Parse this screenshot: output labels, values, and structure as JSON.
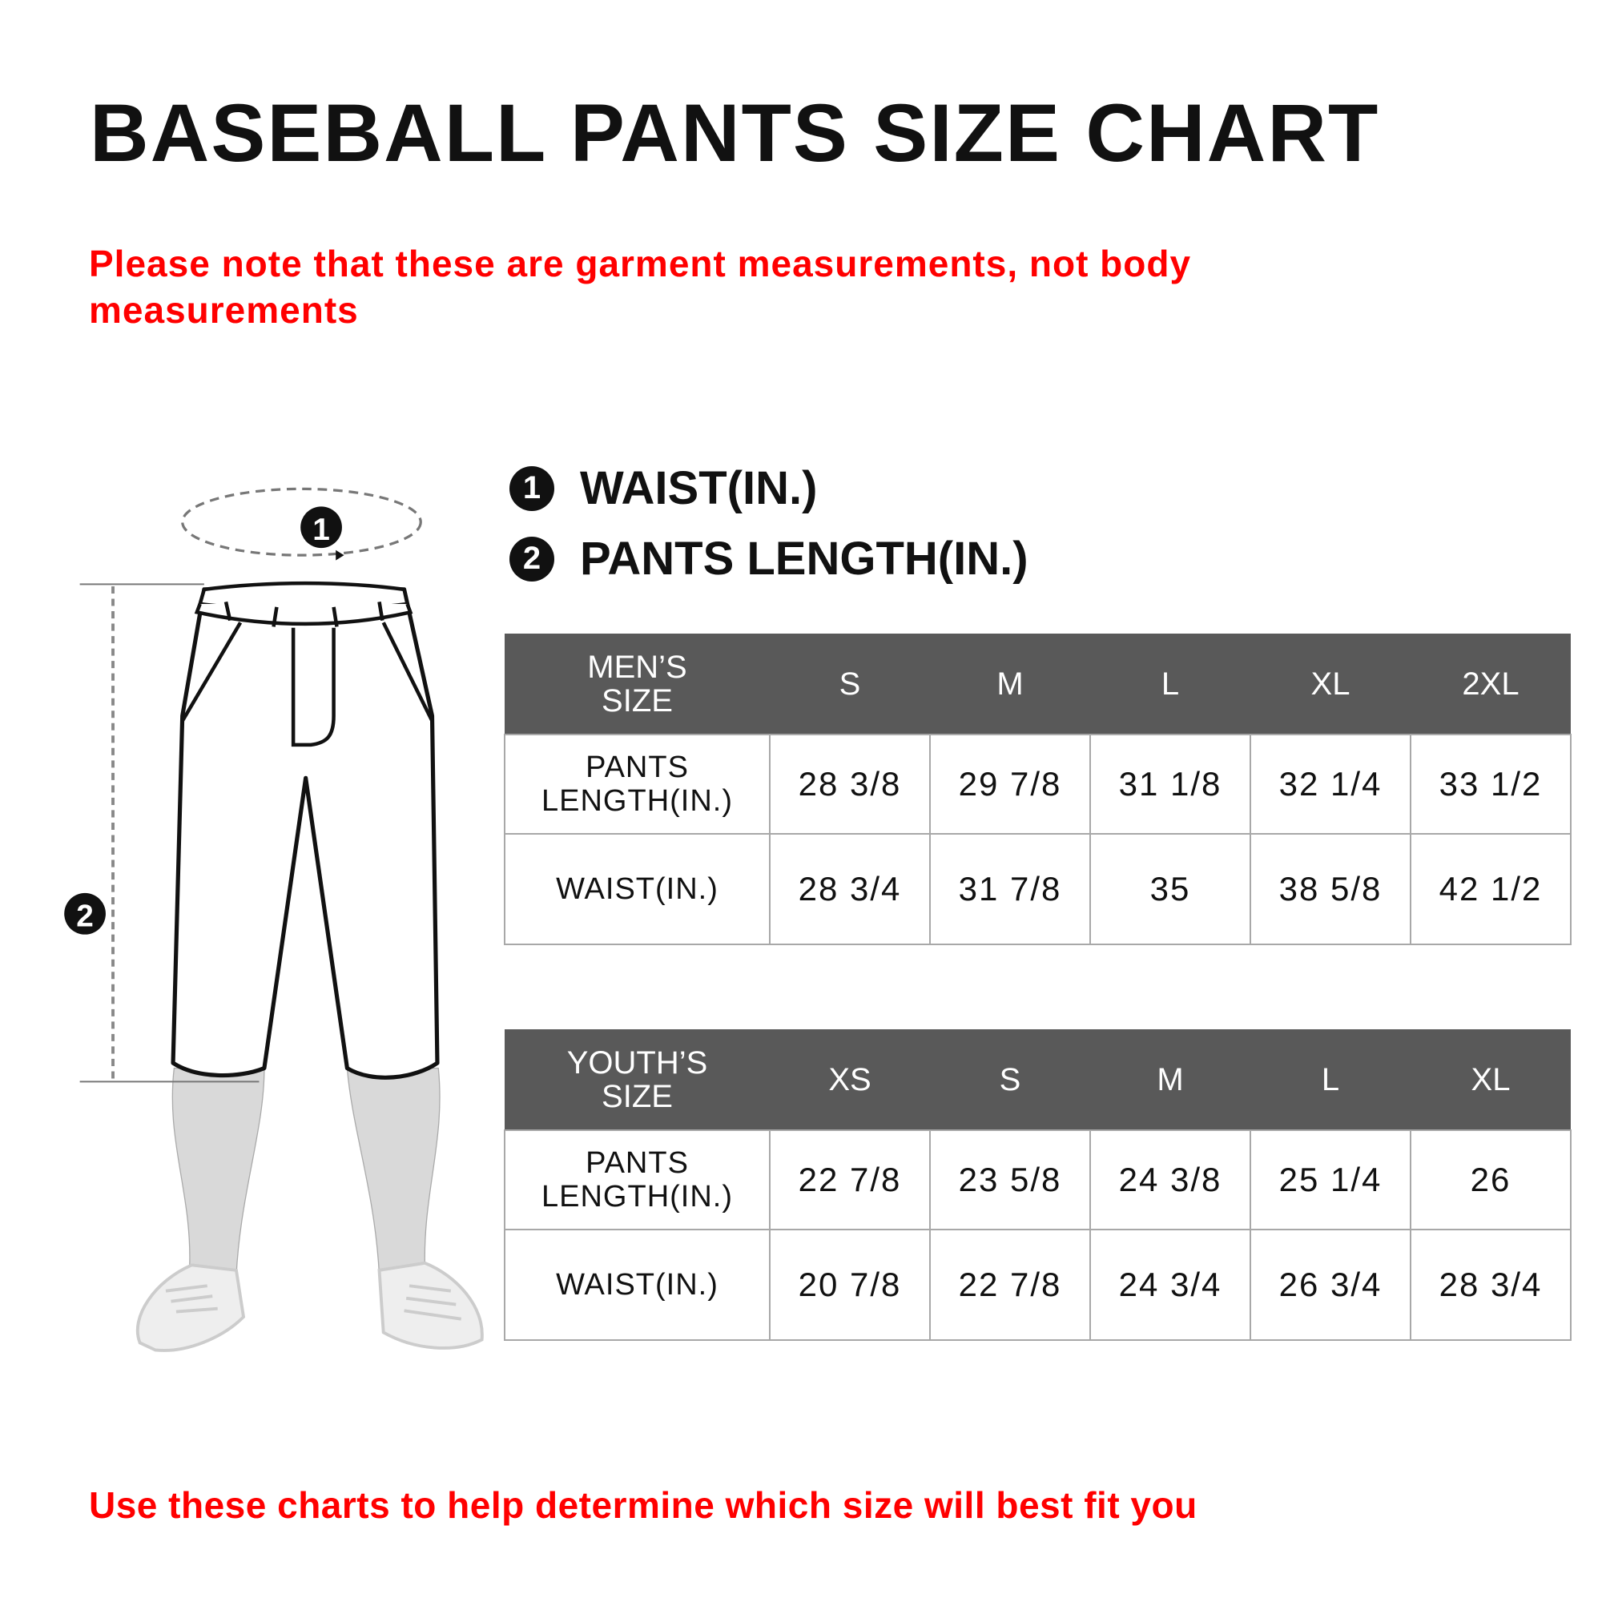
{
  "title": "BASEBALL PANTS SIZE CHART",
  "note": "Please note that these are garment measurements, not body measurements",
  "legend": [
    {
      "number": "1",
      "label": "WAIST(IN.)"
    },
    {
      "number": "2",
      "label": "PANTS LENGTH(IN.)"
    }
  ],
  "diagram": {
    "marker_waist": "1",
    "marker_length": "2"
  },
  "mens_table": {
    "header": "MEN’S SIZE",
    "sizes": [
      "S",
      "M",
      "L",
      "XL",
      "2XL"
    ],
    "rows": [
      {
        "label": "PANTS LENGTH(IN.)",
        "values": [
          "28 3/8",
          "29 7/8",
          "31 1/8",
          "32 1/4",
          "33 1/2"
        ]
      },
      {
        "label": "WAIST(IN.)",
        "values": [
          "28 3/4",
          "31 7/8",
          "35",
          "38 5/8",
          "42 1/2"
        ]
      }
    ]
  },
  "youth_table": {
    "header": "YOUTH’S SIZE",
    "sizes": [
      "XS",
      "S",
      "M",
      "L",
      "XL"
    ],
    "rows": [
      {
        "label": "PANTS LENGTH(IN.)",
        "values": [
          "22 7/8",
          "23 5/8",
          "24 3/8",
          "25 1/4",
          "26"
        ]
      },
      {
        "label": "WAIST(IN.)",
        "values": [
          "20 7/8",
          "22 7/8",
          "24 3/4",
          "26 3/4",
          "28 3/4"
        ]
      }
    ]
  },
  "footer": "Use these charts to help determine which size will best fit you",
  "colors": {
    "accent_red": "#ff0000",
    "table_header": "#595959",
    "border": "#a8a8a8"
  }
}
